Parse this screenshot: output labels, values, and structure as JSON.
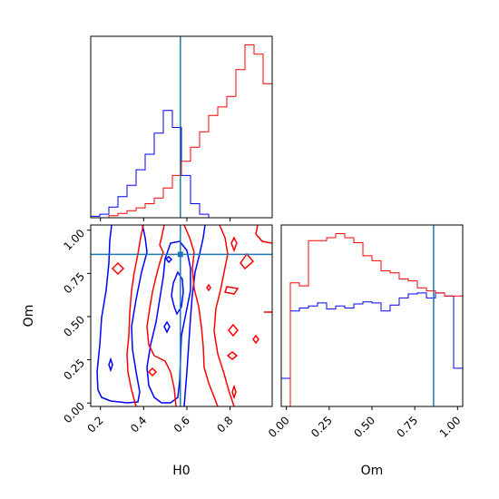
{
  "colors": {
    "series_a": "#0000ff",
    "series_b": "#ff0000",
    "truth": "#1f77b4"
  },
  "chart_data": [
    {
      "type": "corner",
      "parameters": [
        "H0",
        "Om"
      ],
      "truths": {
        "H0": 0.57,
        "Om": 0.86
      },
      "grid": false,
      "panels": [
        {
          "panel": "H0-marginal",
          "type": "histogram",
          "xlim": [
            0.155,
            0.995
          ],
          "bin_edges": [
            0.155,
            0.197,
            0.239,
            0.281,
            0.323,
            0.365,
            0.407,
            0.449,
            0.491,
            0.533,
            0.575,
            0.617,
            0.659,
            0.701,
            0.743,
            0.785,
            0.827,
            0.869,
            0.911,
            0.953,
            0.995
          ],
          "series": [
            {
              "color": "blue",
              "values": [
                2,
                5,
                15,
                30,
                46,
                68,
                90,
                120,
                152,
                128,
                60,
                20,
                5,
                0,
                0,
                0,
                0,
                0,
                0,
                0
              ]
            },
            {
              "color": "red",
              "values": [
                0,
                0,
                3,
                6,
                10,
                14,
                20,
                28,
                42,
                60,
                80,
                100,
                122,
                145,
                157,
                172,
                210,
                245,
                232,
                190
              ]
            }
          ]
        },
        {
          "panel": "H0-Om-joint",
          "type": "contour",
          "xlabel": "H0",
          "ylabel": "Om",
          "xlim": [
            0.155,
            0.995
          ],
          "ylim": [
            -0.02,
            1.03
          ],
          "xticks": [
            "0.2",
            "0.4",
            "0.6",
            "0.8"
          ],
          "yticks": [
            "0.00",
            "0.25",
            "0.50",
            "0.75",
            "1.00"
          ],
          "series": [
            {
              "color": "blue",
              "description": "contour lines concentrated around H0 0.2-0.6 across all Om"
            },
            {
              "color": "red",
              "description": "contour lines spread over H0 0.35-1.0 across all Om"
            }
          ]
        },
        {
          "panel": "Om-marginal",
          "type": "histogram",
          "xlabel": "Om",
          "xlim": [
            -0.03,
            1.03
          ],
          "xticks": [
            "0.00",
            "0.25",
            "0.50",
            "0.75",
            "1.00"
          ],
          "bin_edges": [
            -0.03,
            0.023,
            0.076,
            0.129,
            0.182,
            0.235,
            0.288,
            0.341,
            0.394,
            0.447,
            0.5,
            0.553,
            0.606,
            0.659,
            0.712,
            0.765,
            0.818,
            0.871,
            0.924,
            0.977,
            1.03
          ],
          "series": [
            {
              "color": "blue",
              "values": [
                28,
                95,
                98,
                100,
                103,
                97,
                100,
                98,
                102,
                104,
                103,
                95,
                101,
                108,
                112,
                113,
                108,
                113,
                110,
                38
              ]
            },
            {
              "color": "red",
              "values": [
                0,
                123,
                120,
                165,
                165,
                168,
                172,
                168,
                163,
                150,
                145,
                135,
                133,
                127,
                125,
                118,
                115,
                113,
                110,
                110
              ]
            }
          ]
        }
      ]
    }
  ]
}
